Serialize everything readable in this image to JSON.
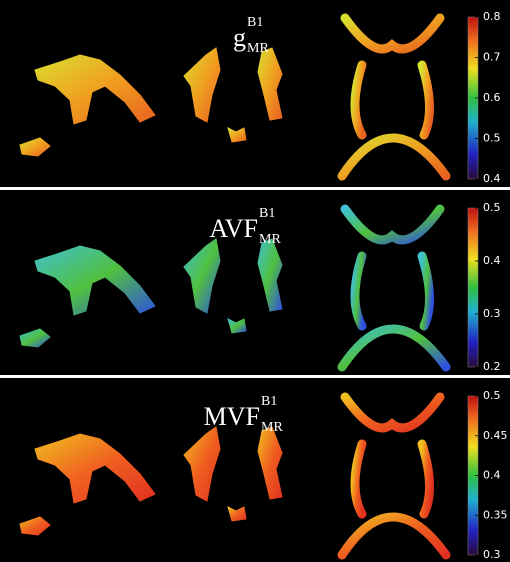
{
  "panels": [
    {
      "title": {
        "base": "g",
        "sup": "B1",
        "sub": "MR"
      },
      "colorbar": {
        "ticks": [
          0.8,
          0.7,
          0.6,
          0.5,
          0.4
        ]
      }
    },
    {
      "title": {
        "base": "AVF",
        "sup": "B1",
        "sub": "MR"
      },
      "colorbar": {
        "ticks": [
          0.5,
          0.4,
          0.3,
          0.2
        ]
      }
    },
    {
      "title": {
        "base": "MVF",
        "sup": "B1",
        "sub": "MR"
      },
      "colorbar": {
        "ticks": [
          0.5,
          0.45,
          0.4,
          0.35,
          0.3
        ]
      }
    }
  ]
}
